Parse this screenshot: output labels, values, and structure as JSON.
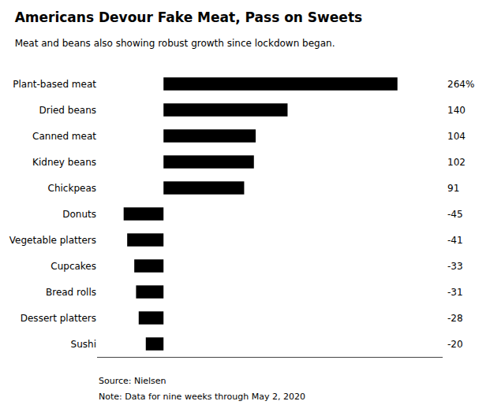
{
  "chart_data": {
    "type": "bar",
    "orientation": "horizontal",
    "title": "Americans Devour Fake Meat, Pass on Sweets",
    "subtitle": "Meat and beans also showing robust growth since lockdown began.",
    "annotations": [
      "Source: Nielsen",
      "Note: Data for nine weeks through May 2, 2020"
    ],
    "categories": [
      "Plant-based meat",
      "Dried beans",
      "Canned meat",
      "Kidney beans",
      "Chickpeas",
      "Donuts",
      "Vegetable platters",
      "Cupcakes",
      "Bread rolls",
      "Dessert platters",
      "Sushi"
    ],
    "values": [
      264,
      140,
      104,
      102,
      91,
      -45,
      -41,
      -33,
      -31,
      -28,
      -20
    ],
    "value_labels": [
      "264%",
      "140",
      "104",
      "102",
      "91",
      "-45",
      "-41",
      "-33",
      "-31",
      "-28",
      "-20"
    ],
    "data_labels": true,
    "color": "#000000",
    "xlim": [
      -75,
      315
    ],
    "grid": false,
    "tick_labels": "y"
  }
}
